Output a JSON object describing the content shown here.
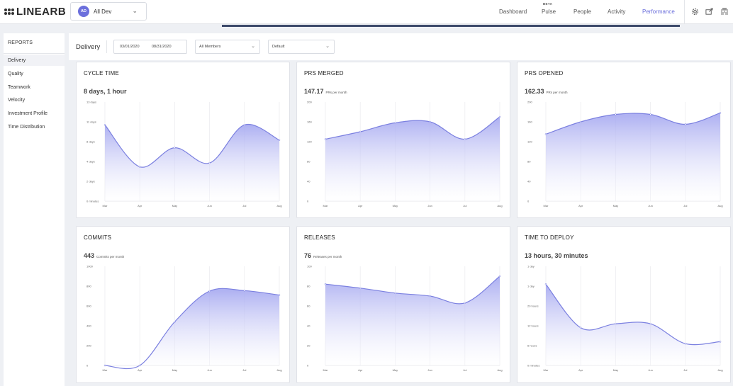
{
  "app": {
    "logo_text": "LINEARB"
  },
  "team_select": {
    "avatar": "AD",
    "name": "All Dev"
  },
  "nav": {
    "items": [
      {
        "label": "Dashboard",
        "active": false
      },
      {
        "label": "Pulse",
        "active": false,
        "badge": "BETA"
      },
      {
        "label": "People",
        "active": false
      },
      {
        "label": "Activity",
        "active": false
      },
      {
        "label": "Performance",
        "active": true
      }
    ],
    "icons": [
      "gear-icon",
      "share-icon",
      "org-icon"
    ]
  },
  "sidebar": {
    "heading": "REPORTS",
    "items": [
      {
        "label": "Delivery",
        "active": true
      },
      {
        "label": "Quality"
      },
      {
        "label": "Teamwork"
      },
      {
        "label": "Velocity"
      },
      {
        "label": "Investment Profile"
      },
      {
        "label": "Time Distribution"
      }
    ]
  },
  "filters": {
    "title": "Delivery",
    "date_from": "03/01/2020",
    "date_to": "08/31/2020",
    "members": "All Members",
    "view": "Default"
  },
  "colors": {
    "accent": "#6b6fdc",
    "line": "#7b80e0",
    "fill_top": "#a3a6f0",
    "fill_bottom": "#ffffff"
  },
  "cards": [
    {
      "title": "CYCLE TIME",
      "value": "8 days, 1 hour",
      "unit": ""
    },
    {
      "title": "PRS MERGED",
      "value": "147.17",
      "unit": "PRs per month"
    },
    {
      "title": "PRS OPENED",
      "value": "162.33",
      "unit": "PRs per month"
    },
    {
      "title": "COMMITS",
      "value": "443",
      "unit": "Commits per month"
    },
    {
      "title": "RELEASES",
      "value": "76",
      "unit": "Releases per month"
    },
    {
      "title": "TIME TO DEPLOY",
      "value": "13 hours, 30 minutes",
      "unit": ""
    }
  ],
  "chart_data": [
    {
      "type": "area",
      "x": [
        "Mar",
        "Apr",
        "May",
        "Jun",
        "Jul",
        "Aug"
      ],
      "y_ticks": [
        "0 minutes",
        "2 days",
        "4 days",
        "8 days",
        "11 days",
        "13 days"
      ],
      "ylim": [
        0,
        13
      ],
      "series": [
        {
          "values": [
            10,
            4.5,
            7,
            5,
            10,
            8
          ]
        }
      ]
    },
    {
      "type": "area",
      "x": [
        "Mar",
        "Apr",
        "May",
        "Jun",
        "Jul",
        "Aug"
      ],
      "y_ticks": [
        "0",
        "40",
        "80",
        "120",
        "160",
        "200"
      ],
      "ylim": [
        0,
        200
      ],
      "series": [
        {
          "values": [
            125,
            140,
            158,
            160,
            125,
            170
          ]
        }
      ]
    },
    {
      "type": "area",
      "x": [
        "Mar",
        "Apr",
        "May",
        "Jun",
        "Jul",
        "Aug"
      ],
      "y_ticks": [
        "0",
        "40",
        "80",
        "120",
        "160",
        "200"
      ],
      "ylim": [
        0,
        200
      ],
      "series": [
        {
          "values": [
            135,
            160,
            175,
            175,
            155,
            178
          ]
        }
      ]
    },
    {
      "type": "area",
      "x": [
        "Mar",
        "Apr",
        "May",
        "Jun",
        "Jul",
        "Aug"
      ],
      "y_ticks": [
        "0",
        "200",
        "400",
        "600",
        "800",
        "1000"
      ],
      "ylim": [
        0,
        1000
      ],
      "series": [
        {
          "values": [
            0,
            0,
            440,
            750,
            755,
            710
          ]
        }
      ]
    },
    {
      "type": "area",
      "x": [
        "Mar",
        "Apr",
        "May",
        "Jun",
        "Jul",
        "Aug"
      ],
      "y_ticks": [
        "0",
        "20",
        "40",
        "60",
        "80",
        "100"
      ],
      "ylim": [
        0,
        100
      ],
      "series": [
        {
          "values": [
            82,
            78,
            73,
            70,
            63,
            90
          ]
        }
      ]
    },
    {
      "type": "area",
      "x": [
        "Mar",
        "Apr",
        "May",
        "Jun",
        "Jul",
        "Aug"
      ],
      "y_ticks": [
        "0 minutes",
        "6 hours",
        "12 hours",
        "20 hours",
        "1 day",
        "1 day"
      ],
      "ylim": [
        0,
        5
      ],
      "series": [
        {
          "values": [
            4.1,
            1.9,
            2.1,
            2.1,
            1.1,
            1.2
          ]
        }
      ]
    }
  ]
}
